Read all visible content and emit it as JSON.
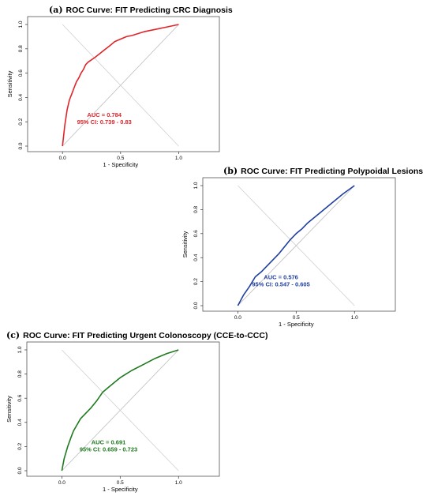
{
  "chart_data": [
    {
      "type": "line",
      "tag": "(a)",
      "title": "ROC Curve: FIT Predicting CRC Diagnosis",
      "xlabel": "1 - Specificity",
      "ylabel": "Sensitivity",
      "xlim": [
        -0.3,
        1.35
      ],
      "ylim": [
        0,
        1
      ],
      "xticks": [
        "0.0",
        "0.5",
        "1.0"
      ],
      "yticks": [
        "0.0",
        "0.2",
        "0.4",
        "0.6",
        "0.8",
        "1.0"
      ],
      "color": "#e0252a",
      "annotation": [
        "AUC = 0.784",
        "95% CI: 0.739 - 0.83"
      ],
      "auc": 0.784,
      "ci": [
        0.739,
        0.83
      ],
      "series": [
        {
          "x": [
            0,
            0.02,
            0.04,
            0.06,
            0.08,
            0.1,
            0.12,
            0.14,
            0.16,
            0.18,
            0.2,
            0.22,
            0.25,
            0.28,
            0.32,
            0.36,
            0.4,
            0.45,
            0.5,
            0.55,
            0.6,
            0.7,
            0.8,
            0.9,
            1.0
          ],
          "y": [
            0,
            0.17,
            0.3,
            0.38,
            0.43,
            0.48,
            0.53,
            0.56,
            0.6,
            0.63,
            0.67,
            0.69,
            0.71,
            0.73,
            0.76,
            0.79,
            0.82,
            0.86,
            0.88,
            0.9,
            0.91,
            0.94,
            0.96,
            0.98,
            1.0
          ]
        }
      ]
    },
    {
      "type": "line",
      "tag": "(b)",
      "title": "ROC Curve: FIT Predicting Polypoidal Lesions",
      "xlabel": "1 - Specificity",
      "ylabel": "Sensitivity",
      "xlim": [
        -0.3,
        1.35
      ],
      "ylim": [
        0,
        1
      ],
      "xticks": [
        "0.0",
        "0.5",
        "1.0"
      ],
      "yticks": [
        "0.0",
        "0.2",
        "0.4",
        "0.6",
        "0.8",
        "1.0"
      ],
      "color": "#1f3fa0",
      "annotation": [
        "AUC = 0.576",
        "95% CI: 0.547 - 0.605"
      ],
      "auc": 0.576,
      "ci": [
        0.547,
        0.605
      ],
      "series": [
        {
          "x": [
            0,
            0.05,
            0.1,
            0.15,
            0.2,
            0.25,
            0.3,
            0.35,
            0.4,
            0.45,
            0.5,
            0.55,
            0.6,
            0.7,
            0.8,
            0.9,
            1.0
          ],
          "y": [
            0,
            0.09,
            0.16,
            0.24,
            0.28,
            0.33,
            0.38,
            0.43,
            0.49,
            0.55,
            0.6,
            0.64,
            0.69,
            0.77,
            0.85,
            0.93,
            1.0
          ]
        }
      ]
    },
    {
      "type": "line",
      "tag": "(c)",
      "title": "ROC Curve: FIT Predicting Urgent Colonoscopy (CCE-to-CCC)",
      "xlabel": "1 - Specificity",
      "ylabel": "Sensitivity",
      "xlim": [
        -0.3,
        1.35
      ],
      "ylim": [
        0,
        1
      ],
      "xticks": [
        "0.0",
        "0.5",
        "1.0"
      ],
      "yticks": [
        "0.0",
        "0.2",
        "0.4",
        "0.6",
        "0.8",
        "1.0"
      ],
      "color": "#1f7a1f",
      "annotation": [
        "AUC = 0.691",
        "95% CI: 0.659 - 0.723"
      ],
      "auc": 0.691,
      "ci": [
        0.659,
        0.723
      ],
      "series": [
        {
          "x": [
            0,
            0.02,
            0.05,
            0.08,
            0.1,
            0.13,
            0.16,
            0.2,
            0.25,
            0.3,
            0.35,
            0.4,
            0.45,
            0.5,
            0.55,
            0.6,
            0.7,
            0.8,
            0.9,
            1.0
          ],
          "y": [
            0,
            0.1,
            0.2,
            0.28,
            0.33,
            0.38,
            0.43,
            0.47,
            0.52,
            0.58,
            0.65,
            0.69,
            0.73,
            0.77,
            0.8,
            0.83,
            0.88,
            0.93,
            0.97,
            1.0
          ]
        }
      ]
    }
  ]
}
